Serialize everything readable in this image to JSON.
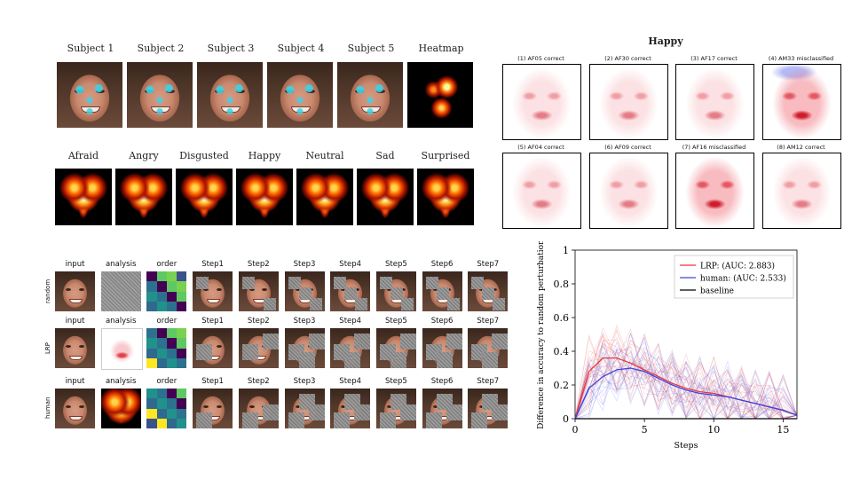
{
  "panelA": {
    "subjects": [
      "Subject 1",
      "Subject 2",
      "Subject 3",
      "Subject 4",
      "Subject 5",
      "Heatmap"
    ],
    "emotions": [
      "Afraid",
      "Angry",
      "Disgusted",
      "Happy",
      "Neutral",
      "Sad",
      "Surprised"
    ]
  },
  "panelB": {
    "title": "Happy",
    "cells": [
      "(1) AF05 correct",
      "(2) AF30 correct",
      "(3) AF17 correct",
      "(4) AM33 misclassified",
      "(5) AF04 correct",
      "(6) AF09 correct",
      "(7) AF16 misclassified",
      "(8) AM12 correct"
    ]
  },
  "panelC": {
    "columns": [
      "input",
      "analysis",
      "order",
      "Step1",
      "Step2",
      "Step3",
      "Step4",
      "Step5",
      "Step6",
      "Step7"
    ],
    "rows": [
      "random",
      "LRP",
      "human"
    ]
  },
  "chart_data": {
    "type": "line",
    "xlabel": "Steps",
    "ylabel": "Difference in accuracy to random perturbation",
    "xlim": [
      0,
      16
    ],
    "ylim": [
      0,
      1
    ],
    "xticks": [
      "0",
      "5",
      "10",
      "15"
    ],
    "yticks": [
      "0",
      "0.2",
      "0.4",
      "0.6",
      "0.8",
      "1"
    ],
    "legend_position": "top-right",
    "colors": {
      "lrp": "#e8363b",
      "human": "#3a45e0",
      "baseline": "#000000"
    },
    "series": [
      {
        "name": "LRP: (AUC: 2.883)",
        "x": [
          0,
          1,
          2,
          3,
          4,
          5,
          6,
          7,
          8,
          9,
          10,
          11,
          12,
          13,
          14,
          15,
          16
        ],
        "y": [
          0.0,
          0.28,
          0.36,
          0.36,
          0.33,
          0.29,
          0.25,
          0.21,
          0.18,
          0.16,
          0.15,
          0.13,
          0.11,
          0.09,
          0.07,
          0.05,
          0.02
        ]
      },
      {
        "name": "human: (AUC: 2.533)",
        "x": [
          0,
          1,
          2,
          3,
          4,
          5,
          6,
          7,
          8,
          9,
          10,
          11,
          12,
          13,
          14,
          15,
          16
        ],
        "y": [
          0.0,
          0.18,
          0.25,
          0.29,
          0.3,
          0.28,
          0.24,
          0.2,
          0.17,
          0.15,
          0.14,
          0.13,
          0.11,
          0.09,
          0.07,
          0.05,
          0.02
        ]
      },
      {
        "name": "baseline",
        "x": [
          0,
          16
        ],
        "y": [
          0.0,
          0.0
        ]
      }
    ]
  }
}
